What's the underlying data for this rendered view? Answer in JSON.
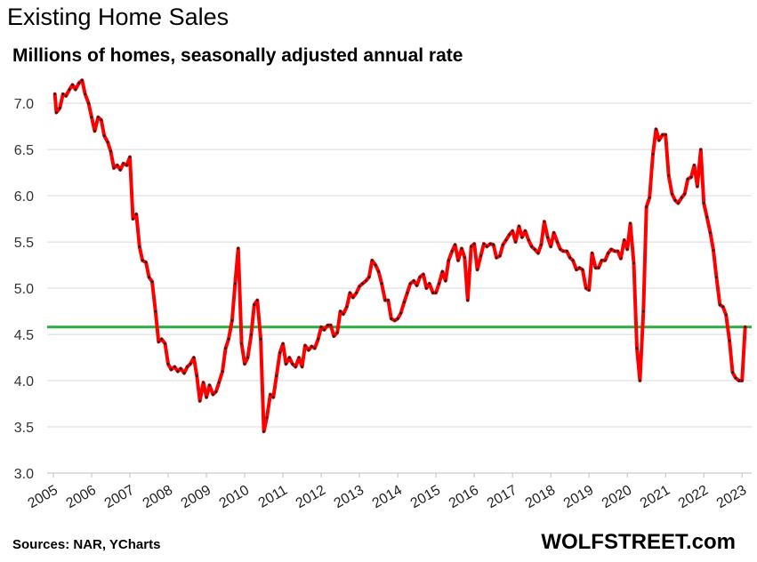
{
  "chart_data": {
    "type": "line",
    "title": "Existing Home Sales",
    "subtitle": "Millions of homes, seasonally adjusted annual rate",
    "ylim": [
      3.0,
      7.3
    ],
    "yticks": [
      "3.0",
      "3.5",
      "4.0",
      "4.5",
      "5.0",
      "5.5",
      "6.0",
      "6.5",
      "7.0"
    ],
    "xlim": [
      2005.0,
      2023.25
    ],
    "xticks": [
      "2005",
      "2006",
      "2007",
      "2008",
      "2009",
      "2010",
      "2011",
      "2012",
      "2013",
      "2014",
      "2015",
      "2016",
      "2017",
      "2018",
      "2019",
      "2020",
      "2021",
      "2022",
      "2023"
    ],
    "grid": true,
    "reference_line": {
      "value": 4.58,
      "color": "#2eaa3f"
    },
    "series": [
      {
        "color": "#ff0000",
        "marker_color": "#222222",
        "points": [
          [
            2005.04,
            7.1
          ],
          [
            2005.08,
            6.9
          ],
          [
            2005.17,
            6.95
          ],
          [
            2005.25,
            7.1
          ],
          [
            2005.33,
            7.08
          ],
          [
            2005.42,
            7.15
          ],
          [
            2005.5,
            7.2
          ],
          [
            2005.58,
            7.15
          ],
          [
            2005.67,
            7.22
          ],
          [
            2005.75,
            7.25
          ],
          [
            2005.83,
            7.1
          ],
          [
            2005.92,
            7.0
          ],
          [
            2006.0,
            6.85
          ],
          [
            2006.08,
            6.7
          ],
          [
            2006.17,
            6.85
          ],
          [
            2006.25,
            6.82
          ],
          [
            2006.33,
            6.65
          ],
          [
            2006.42,
            6.58
          ],
          [
            2006.5,
            6.48
          ],
          [
            2006.58,
            6.3
          ],
          [
            2006.67,
            6.33
          ],
          [
            2006.75,
            6.28
          ],
          [
            2006.83,
            6.35
          ],
          [
            2006.92,
            6.33
          ],
          [
            2007.0,
            6.42
          ],
          [
            2007.08,
            5.75
          ],
          [
            2007.17,
            5.8
          ],
          [
            2007.25,
            5.45
          ],
          [
            2007.33,
            5.3
          ],
          [
            2007.42,
            5.28
          ],
          [
            2007.5,
            5.12
          ],
          [
            2007.58,
            5.07
          ],
          [
            2007.67,
            4.75
          ],
          [
            2007.75,
            4.42
          ],
          [
            2007.83,
            4.45
          ],
          [
            2007.92,
            4.4
          ],
          [
            2008.0,
            4.18
          ],
          [
            2008.08,
            4.12
          ],
          [
            2008.17,
            4.15
          ],
          [
            2008.25,
            4.1
          ],
          [
            2008.33,
            4.13
          ],
          [
            2008.42,
            4.08
          ],
          [
            2008.5,
            4.15
          ],
          [
            2008.58,
            4.18
          ],
          [
            2008.67,
            4.25
          ],
          [
            2008.75,
            4.05
          ],
          [
            2008.83,
            3.78
          ],
          [
            2008.92,
            3.98
          ],
          [
            2009.0,
            3.82
          ],
          [
            2009.08,
            3.95
          ],
          [
            2009.17,
            3.85
          ],
          [
            2009.25,
            3.88
          ],
          [
            2009.33,
            3.98
          ],
          [
            2009.42,
            4.1
          ],
          [
            2009.5,
            4.35
          ],
          [
            2009.58,
            4.45
          ],
          [
            2009.67,
            4.65
          ],
          [
            2009.75,
            5.05
          ],
          [
            2009.83,
            5.43
          ],
          [
            2009.92,
            4.4
          ],
          [
            2010.0,
            4.18
          ],
          [
            2010.08,
            4.25
          ],
          [
            2010.17,
            4.5
          ],
          [
            2010.25,
            4.82
          ],
          [
            2010.33,
            4.87
          ],
          [
            2010.42,
            4.45
          ],
          [
            2010.5,
            3.45
          ],
          [
            2010.58,
            3.6
          ],
          [
            2010.67,
            3.85
          ],
          [
            2010.75,
            3.82
          ],
          [
            2010.83,
            4.05
          ],
          [
            2010.92,
            4.3
          ],
          [
            2011.0,
            4.4
          ],
          [
            2011.08,
            4.18
          ],
          [
            2011.17,
            4.25
          ],
          [
            2011.25,
            4.18
          ],
          [
            2011.33,
            4.15
          ],
          [
            2011.42,
            4.25
          ],
          [
            2011.5,
            4.15
          ],
          [
            2011.58,
            4.38
          ],
          [
            2011.67,
            4.33
          ],
          [
            2011.75,
            4.37
          ],
          [
            2011.83,
            4.35
          ],
          [
            2011.92,
            4.45
          ],
          [
            2012.0,
            4.58
          ],
          [
            2012.08,
            4.55
          ],
          [
            2012.17,
            4.6
          ],
          [
            2012.25,
            4.6
          ],
          [
            2012.33,
            4.48
          ],
          [
            2012.42,
            4.52
          ],
          [
            2012.5,
            4.75
          ],
          [
            2012.58,
            4.72
          ],
          [
            2012.67,
            4.8
          ],
          [
            2012.75,
            4.95
          ],
          [
            2012.83,
            4.9
          ],
          [
            2012.92,
            4.95
          ],
          [
            2013.0,
            5.02
          ],
          [
            2013.08,
            5.05
          ],
          [
            2013.17,
            5.08
          ],
          [
            2013.25,
            5.12
          ],
          [
            2013.33,
            5.3
          ],
          [
            2013.42,
            5.25
          ],
          [
            2013.5,
            5.18
          ],
          [
            2013.58,
            5.05
          ],
          [
            2013.67,
            4.87
          ],
          [
            2013.75,
            4.87
          ],
          [
            2013.83,
            4.67
          ],
          [
            2013.92,
            4.65
          ],
          [
            2014.0,
            4.67
          ],
          [
            2014.08,
            4.73
          ],
          [
            2014.17,
            4.85
          ],
          [
            2014.25,
            4.95
          ],
          [
            2014.33,
            5.05
          ],
          [
            2014.42,
            5.08
          ],
          [
            2014.5,
            5.03
          ],
          [
            2014.58,
            5.12
          ],
          [
            2014.67,
            5.15
          ],
          [
            2014.75,
            5.0
          ],
          [
            2014.83,
            5.05
          ],
          [
            2014.92,
            4.95
          ],
          [
            2015.0,
            4.95
          ],
          [
            2015.08,
            5.05
          ],
          [
            2015.17,
            5.18
          ],
          [
            2015.25,
            5.08
          ],
          [
            2015.33,
            5.3
          ],
          [
            2015.42,
            5.4
          ],
          [
            2015.5,
            5.47
          ],
          [
            2015.58,
            5.3
          ],
          [
            2015.67,
            5.43
          ],
          [
            2015.75,
            5.33
          ],
          [
            2015.83,
            4.87
          ],
          [
            2015.92,
            5.45
          ],
          [
            2016.0,
            5.48
          ],
          [
            2016.08,
            5.2
          ],
          [
            2016.17,
            5.35
          ],
          [
            2016.25,
            5.48
          ],
          [
            2016.33,
            5.45
          ],
          [
            2016.42,
            5.48
          ],
          [
            2016.5,
            5.47
          ],
          [
            2016.58,
            5.33
          ],
          [
            2016.67,
            5.35
          ],
          [
            2016.75,
            5.47
          ],
          [
            2016.83,
            5.52
          ],
          [
            2016.92,
            5.58
          ],
          [
            2017.0,
            5.62
          ],
          [
            2017.08,
            5.5
          ],
          [
            2017.17,
            5.67
          ],
          [
            2017.25,
            5.55
          ],
          [
            2017.33,
            5.62
          ],
          [
            2017.42,
            5.52
          ],
          [
            2017.5,
            5.45
          ],
          [
            2017.58,
            5.42
          ],
          [
            2017.67,
            5.38
          ],
          [
            2017.75,
            5.47
          ],
          [
            2017.83,
            5.72
          ],
          [
            2017.92,
            5.55
          ],
          [
            2018.0,
            5.45
          ],
          [
            2018.08,
            5.6
          ],
          [
            2018.17,
            5.5
          ],
          [
            2018.25,
            5.42
          ],
          [
            2018.33,
            5.4
          ],
          [
            2018.42,
            5.4
          ],
          [
            2018.5,
            5.33
          ],
          [
            2018.58,
            5.3
          ],
          [
            2018.67,
            5.2
          ],
          [
            2018.75,
            5.22
          ],
          [
            2018.83,
            5.2
          ],
          [
            2018.92,
            5.0
          ],
          [
            2019.0,
            4.98
          ],
          [
            2019.08,
            5.38
          ],
          [
            2019.17,
            5.22
          ],
          [
            2019.25,
            5.22
          ],
          [
            2019.33,
            5.3
          ],
          [
            2019.42,
            5.3
          ],
          [
            2019.5,
            5.38
          ],
          [
            2019.58,
            5.42
          ],
          [
            2019.67,
            5.4
          ],
          [
            2019.75,
            5.4
          ],
          [
            2019.83,
            5.32
          ],
          [
            2019.92,
            5.52
          ],
          [
            2020.0,
            5.42
          ],
          [
            2020.08,
            5.7
          ],
          [
            2020.17,
            5.27
          ],
          [
            2020.25,
            4.35
          ],
          [
            2020.33,
            4.0
          ],
          [
            2020.42,
            4.75
          ],
          [
            2020.5,
            5.88
          ],
          [
            2020.58,
            5.98
          ],
          [
            2020.67,
            6.45
          ],
          [
            2020.75,
            6.72
          ],
          [
            2020.83,
            6.6
          ],
          [
            2020.92,
            6.66
          ],
          [
            2021.0,
            6.66
          ],
          [
            2021.08,
            6.22
          ],
          [
            2021.17,
            6.02
          ],
          [
            2021.25,
            5.95
          ],
          [
            2021.33,
            5.92
          ],
          [
            2021.42,
            5.98
          ],
          [
            2021.5,
            6.02
          ],
          [
            2021.58,
            6.18
          ],
          [
            2021.67,
            6.2
          ],
          [
            2021.75,
            6.33
          ],
          [
            2021.83,
            6.1
          ],
          [
            2021.92,
            6.5
          ],
          [
            2022.0,
            5.92
          ],
          [
            2022.08,
            5.77
          ],
          [
            2022.17,
            5.6
          ],
          [
            2022.25,
            5.41
          ],
          [
            2022.33,
            5.12
          ],
          [
            2022.42,
            4.82
          ],
          [
            2022.5,
            4.8
          ],
          [
            2022.58,
            4.71
          ],
          [
            2022.67,
            4.43
          ],
          [
            2022.75,
            4.09
          ],
          [
            2022.83,
            4.03
          ],
          [
            2022.92,
            4.0
          ],
          [
            2023.0,
            4.0
          ],
          [
            2023.08,
            4.58
          ]
        ]
      }
    ]
  },
  "footer": {
    "sources": "Sources: NAR, YCharts",
    "brand": "WOLFSTREET.com"
  }
}
